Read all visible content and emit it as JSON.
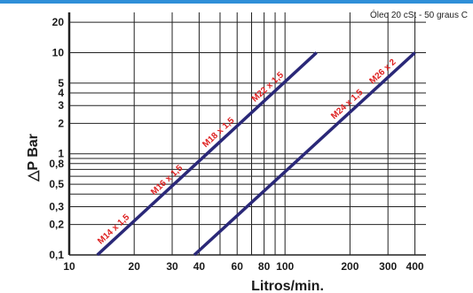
{
  "chart_data": {
    "type": "line",
    "title": "",
    "note": "Óleo 20 cSt - 50 graus C",
    "xlabel": "Litros/min.",
    "ylabel": "△P  Bar",
    "x_scale": "log",
    "y_scale": "log",
    "xlim": [
      10,
      450
    ],
    "ylim": [
      0.1,
      25
    ],
    "grid": true,
    "x_ticks": [
      {
        "value": 10,
        "label": "10"
      },
      {
        "value": 20,
        "label": "20"
      },
      {
        "value": 30,
        "label": "30"
      },
      {
        "value": 40,
        "label": "40"
      },
      {
        "value": 60,
        "label": "60"
      },
      {
        "value": 80,
        "label": "80"
      },
      {
        "value": 100,
        "label": "100"
      },
      {
        "value": 200,
        "label": "200"
      },
      {
        "value": 300,
        "label": "300"
      },
      {
        "value": 400,
        "label": "400"
      }
    ],
    "y_ticks": [
      {
        "value": 0.1,
        "label": "0,1"
      },
      {
        "value": 0.2,
        "label": "0,2"
      },
      {
        "value": 0.3,
        "label": "0,3"
      },
      {
        "value": 0.5,
        "label": "0,5"
      },
      {
        "value": 0.8,
        "label": "0,8"
      },
      {
        "value": 1,
        "label": "1"
      },
      {
        "value": 2,
        "label": "2"
      },
      {
        "value": 3,
        "label": "3"
      },
      {
        "value": 4,
        "label": "4"
      },
      {
        "value": 5,
        "label": "5"
      },
      {
        "value": 10,
        "label": "10"
      },
      {
        "value": 20,
        "label": "20"
      }
    ],
    "x_grid": [
      10,
      20,
      30,
      40,
      50,
      60,
      70,
      80,
      90,
      100,
      200,
      300,
      400
    ],
    "y_grid": [
      0.1,
      0.2,
      0.3,
      0.4,
      0.5,
      0.6,
      0.7,
      0.8,
      0.9,
      1,
      2,
      3,
      4,
      5,
      10,
      20
    ],
    "series": [
      {
        "x": [
          13.5,
          140
        ],
        "y": [
          0.1,
          10
        ],
        "labels": [
          "M14 x 1,5",
          "M16 x 1,5",
          "M18 x 1,5",
          "M22 x 1,5"
        ],
        "label_x": [
          17,
          30,
          52,
          88
        ]
      },
      {
        "x": [
          38,
          400
        ],
        "y": [
          0.1,
          10
        ],
        "labels": [
          "M24 x 1,5",
          "M26 x 2"
        ],
        "label_x": [
          205,
          300
        ]
      }
    ],
    "colors": {
      "line": "#2a2878",
      "label": "#dd1e1e",
      "grid": "#222222",
      "text": "#1a1a1a",
      "topbar": "#2f8fd8"
    }
  }
}
